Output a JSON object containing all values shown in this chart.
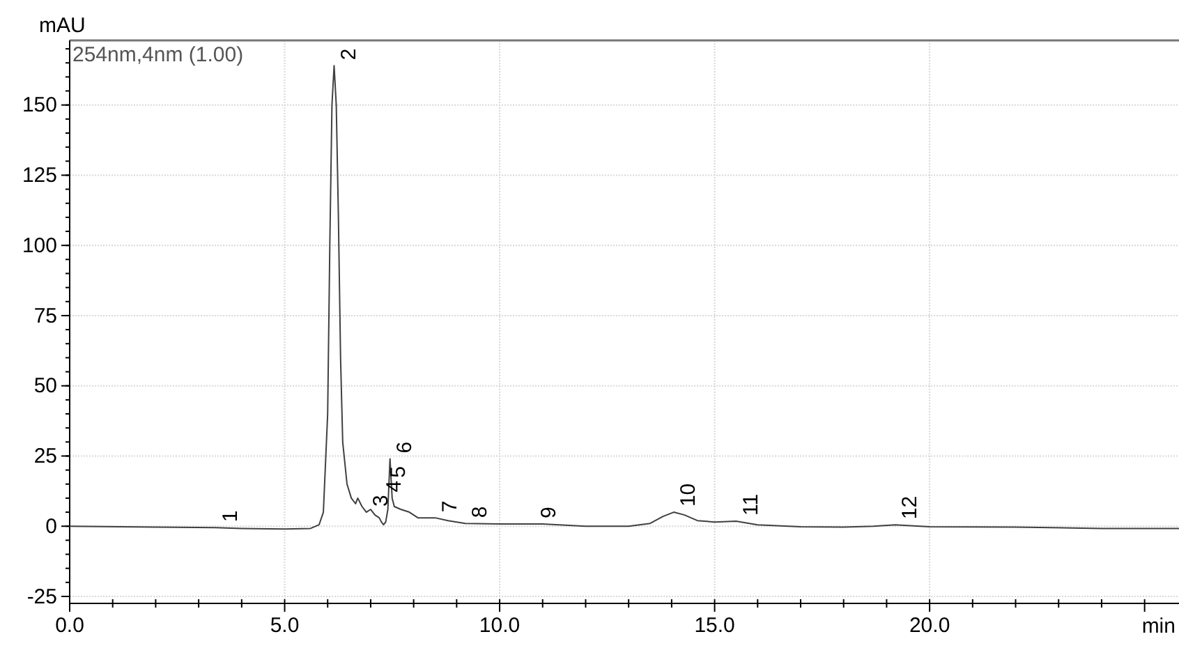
{
  "chart_data": {
    "type": "line",
    "ylabel": "mAU",
    "xlabel": "min",
    "subtitle": "254nm,4nm (1.00)",
    "color": "#404040",
    "grid": true,
    "marker": "none",
    "line_style": "solid",
    "xlim": [
      0,
      25.8
    ],
    "ylim": [
      -26,
      173
    ],
    "xticks": [
      {
        "value": 0,
        "label": "0.0"
      },
      {
        "value": 1,
        "label": null
      },
      {
        "value": 2,
        "label": null
      },
      {
        "value": 3,
        "label": null
      },
      {
        "value": 4,
        "label": null
      },
      {
        "value": 5,
        "label": "5.0"
      },
      {
        "value": 6,
        "label": null
      },
      {
        "value": 7,
        "label": null
      },
      {
        "value": 8,
        "label": null
      },
      {
        "value": 9,
        "label": null
      },
      {
        "value": 10,
        "label": "10.0"
      },
      {
        "value": 11,
        "label": null
      },
      {
        "value": 12,
        "label": null
      },
      {
        "value": 13,
        "label": null
      },
      {
        "value": 14,
        "label": null
      },
      {
        "value": 15,
        "label": "15.0"
      },
      {
        "value": 16,
        "label": null
      },
      {
        "value": 17,
        "label": null
      },
      {
        "value": 18,
        "label": null
      },
      {
        "value": 19,
        "label": null
      },
      {
        "value": 20,
        "label": "20.0"
      },
      {
        "value": 21,
        "label": null
      },
      {
        "value": 22,
        "label": null
      },
      {
        "value": 23,
        "label": null
      },
      {
        "value": 24,
        "label": null
      },
      {
        "value": 25,
        "label": null
      }
    ],
    "yticks": [
      -25,
      0,
      25,
      50,
      75,
      100,
      125,
      150
    ],
    "x": [
      0,
      2,
      3.4,
      4,
      5,
      5.6,
      5.8,
      5.9,
      6.0,
      6.05,
      6.1,
      6.15,
      6.2,
      6.25,
      6.3,
      6.35,
      6.45,
      6.55,
      6.65,
      6.7,
      6.8,
      6.9,
      7.0,
      7.1,
      7.2,
      7.25,
      7.3,
      7.35,
      7.4,
      7.45,
      7.5,
      7.55,
      7.7,
      7.9,
      8.1,
      8.5,
      8.8,
      9.2,
      10,
      11,
      12,
      13,
      13.5,
      13.8,
      14.05,
      14.3,
      14.6,
      15,
      15.5,
      16,
      17,
      18,
      18.7,
      19.2,
      20,
      22,
      24,
      25.8
    ],
    "values": [
      0,
      -0.3,
      -0.5,
      -0.8,
      -1,
      -0.8,
      0.5,
      5,
      40,
      100,
      150,
      164,
      150,
      110,
      60,
      30,
      15,
      10,
      8,
      10,
      7,
      5,
      6,
      4,
      3,
      1.5,
      0.5,
      1.5,
      6,
      24,
      10,
      7,
      6,
      5,
      3,
      3,
      2,
      1,
      0.8,
      0.8,
      0,
      0,
      1,
      3.5,
      5,
      4,
      2,
      1.5,
      1.8,
      0.5,
      -0.2,
      -0.3,
      0,
      0.5,
      -0.2,
      -0.3,
      -0.8,
      -0.8
    ],
    "annotations": [
      {
        "text": "1",
        "x": 3.4,
        "y": -0.5
      },
      {
        "text": "2",
        "x": 6.15,
        "y": 164
      },
      {
        "text": "3",
        "x": 6.9,
        "y": 5
      },
      {
        "text": "4",
        "x": 7.2,
        "y": 3
      },
      {
        "text": "5",
        "x": 7.3,
        "y": 0.5
      },
      {
        "text": "6",
        "x": 7.45,
        "y": 24
      },
      {
        "text": "7",
        "x": 8.5,
        "y": 3
      },
      {
        "text": "8",
        "x": 9.2,
        "y": 1
      },
      {
        "text": "9",
        "x": 10.8,
        "y": 0.8
      },
      {
        "text": "10",
        "x": 14.05,
        "y": 5
      },
      {
        "text": "11",
        "x": 15.5,
        "y": 1.8
      },
      {
        "text": "12",
        "x": 19.2,
        "y": 0.5
      }
    ]
  }
}
